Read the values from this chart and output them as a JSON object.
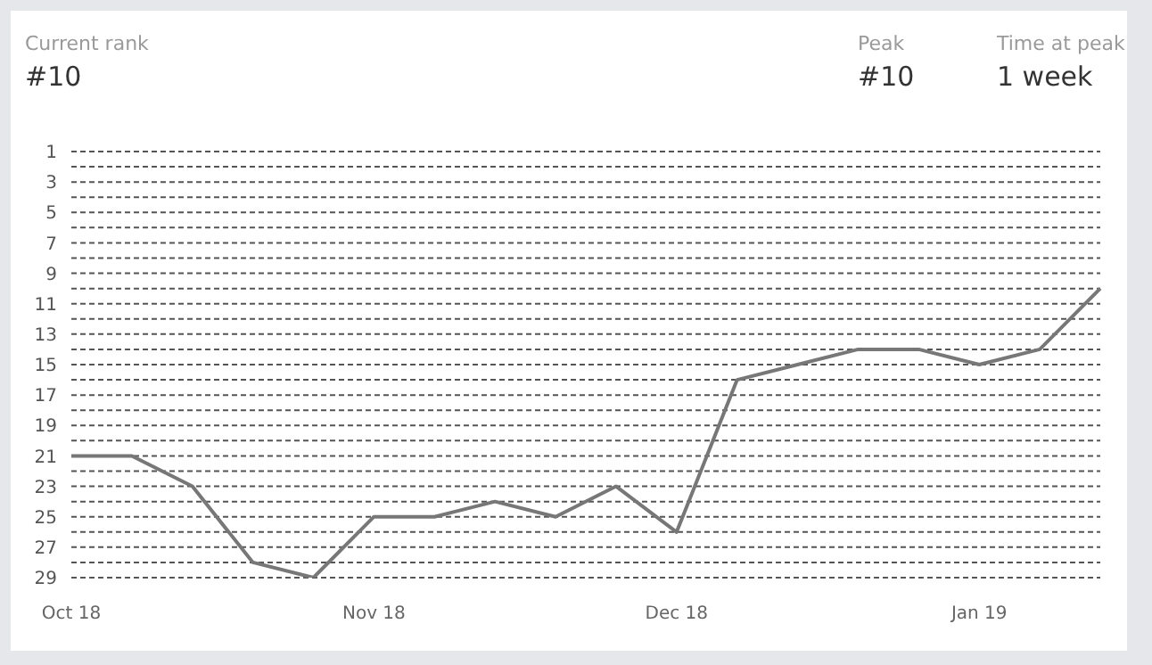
{
  "chart_data": {
    "type": "line",
    "annotations": [
      "Current rank",
      "#10",
      "Peak",
      "#10",
      "Time at peak",
      "1 week"
    ],
    "categories": [
      "Oct 18",
      null,
      null,
      null,
      null,
      "Nov 18",
      null,
      null,
      null,
      null,
      "Dec 18",
      null,
      null,
      null,
      null,
      "Jan 19",
      null,
      null
    ],
    "series": [
      {
        "color": "#777777",
        "values": [
          21,
          21,
          23,
          28,
          29,
          25,
          25,
          24,
          25,
          23,
          26,
          16,
          15,
          14,
          14,
          15,
          14,
          10
        ]
      }
    ],
    "ylim": [
      29,
      1
    ],
    "yticks": [
      1,
      {
        "value": 2,
        "label": null
      },
      3,
      {
        "value": 4,
        "label": null
      },
      5,
      {
        "value": 6,
        "label": null
      },
      7,
      {
        "value": 8,
        "label": null
      },
      9,
      {
        "value": 10,
        "label": null
      },
      11,
      {
        "value": 12,
        "label": null
      },
      13,
      {
        "value": 14,
        "label": null
      },
      15,
      {
        "value": 16,
        "label": null
      },
      17,
      {
        "value": 18,
        "label": null
      },
      19,
      {
        "value": 20,
        "label": null
      },
      21,
      {
        "value": 22,
        "label": null
      },
      23,
      {
        "value": 24,
        "label": null
      },
      25,
      {
        "value": 26,
        "label": null
      },
      27,
      {
        "value": 28,
        "label": null
      },
      29
    ],
    "grid": "y",
    "marker": "none",
    "line_style": "solid"
  }
}
